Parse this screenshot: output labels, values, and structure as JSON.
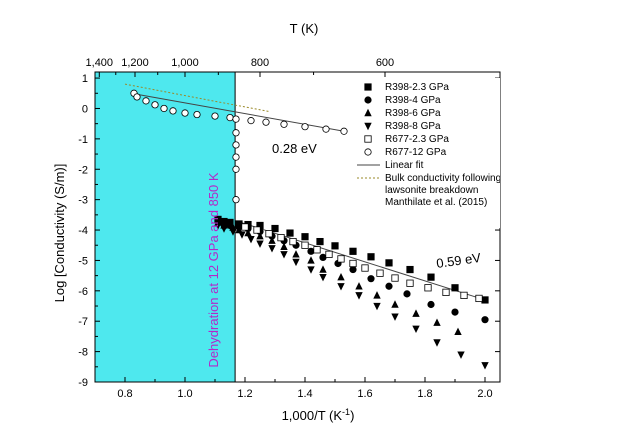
{
  "chart_data": {
    "type": "scatter",
    "xlabel": "1,000/T (K",
    "xlabel_sup": "-1",
    "xlabel_close": ")",
    "ylabel": "Log [Conductivity (S/m)]",
    "top_xlabel": "T (K)",
    "xlim": [
      0.7,
      2.05
    ],
    "ylim": [
      -9,
      1.2
    ],
    "x_ticks": [
      0.8,
      1.0,
      1.2,
      1.4,
      1.6,
      1.8,
      2.0
    ],
    "x_tick_labels": [
      "0.8",
      "1.0",
      "1.2",
      "1.4",
      "1.6",
      "1.8",
      "2.0"
    ],
    "y_ticks": [
      1,
      0,
      -1,
      -2,
      -3,
      -4,
      -5,
      -6,
      -7,
      -8,
      -9
    ],
    "y_tick_labels": [
      "1",
      "0",
      "-1",
      "-2",
      "-3",
      "-4",
      "-5",
      "-6",
      "-7",
      "-8",
      "-9"
    ],
    "top_ticks": [
      {
        "T": 1400,
        "label": "1,400"
      },
      {
        "T": 1200,
        "label": "1,200"
      },
      {
        "T": 1000,
        "label": "1,000"
      },
      {
        "T": 800,
        "label": "800"
      },
      {
        "T": 600,
        "label": "600"
      }
    ],
    "top_minor_ticks": [
      1300,
      1100,
      900,
      700
    ],
    "shaded_region": {
      "x": [
        0.7,
        1.167
      ],
      "color": "#4ee8ee"
    },
    "vertical_line_x": 1.167,
    "annotations": {
      "dehydration": "Dehydration at 12 GPa and 850 K",
      "ea_low": "0.28 eV",
      "ea_high": "0.59 eV"
    },
    "legend": [
      {
        "series": "R398-2.3",
        "label": "R398-2.3 GPa",
        "marker": "square-filled"
      },
      {
        "series": "R398-4",
        "label": "R398-4 GPa",
        "marker": "circle-filled"
      },
      {
        "series": "R398-6",
        "label": "R398-6 GPa",
        "marker": "triangle-up-filled"
      },
      {
        "series": "R398-8",
        "label": "R398-8 GPa",
        "marker": "triangle-down-filled"
      },
      {
        "series": "R677-2.3",
        "label": "R677-2.3 GPa",
        "marker": "square-open"
      },
      {
        "series": "R677-12",
        "label": "R677-12 GPa",
        "marker": "circle-open"
      },
      {
        "label": "Linear fit",
        "marker": "line-solid"
      },
      {
        "label_lines": [
          "Bulk conductivity following",
          "lawsonite breakdown",
          "Manthilate et al. (2015)"
        ],
        "marker": "line-dotted",
        "color": "#9a8a2a"
      }
    ],
    "series": [
      {
        "name": "R398-2.3",
        "marker": "square-filled",
        "x": [
          1.11,
          1.13,
          1.15,
          1.18,
          1.21,
          1.25,
          1.3,
          1.35,
          1.4,
          1.45,
          1.5,
          1.56,
          1.62,
          1.68,
          1.75,
          1.82,
          1.9,
          2.0
        ],
        "y": [
          -3.65,
          -3.72,
          -3.75,
          -3.8,
          -3.82,
          -3.85,
          -3.95,
          -4.1,
          -4.22,
          -4.38,
          -4.52,
          -4.7,
          -4.88,
          -5.08,
          -5.3,
          -5.55,
          -5.9,
          -6.3
        ]
      },
      {
        "name": "R398-4",
        "marker": "circle-filled",
        "x": [
          1.11,
          1.13,
          1.15,
          1.18,
          1.21,
          1.25,
          1.29,
          1.33,
          1.37,
          1.42,
          1.46,
          1.51,
          1.56,
          1.62,
          1.68,
          1.74,
          1.82,
          1.9,
          2.0
        ],
        "y": [
          -3.7,
          -3.8,
          -3.85,
          -3.9,
          -3.95,
          -4.05,
          -4.2,
          -4.35,
          -4.5,
          -4.7,
          -4.9,
          -5.1,
          -5.3,
          -5.6,
          -5.85,
          -6.1,
          -6.45,
          -6.7,
          -6.95
        ]
      },
      {
        "name": "R398-6",
        "marker": "triangle-up-filled",
        "x": [
          1.11,
          1.13,
          1.16,
          1.18,
          1.21,
          1.25,
          1.29,
          1.33,
          1.37,
          1.42,
          1.46,
          1.52,
          1.58,
          1.64,
          1.7,
          1.77,
          1.84,
          1.91
        ],
        "y": [
          -3.75,
          -3.85,
          -3.92,
          -4.0,
          -4.1,
          -4.2,
          -4.35,
          -4.55,
          -4.8,
          -5.0,
          -5.3,
          -5.55,
          -5.85,
          -6.15,
          -6.45,
          -6.75,
          -7.05,
          -7.35
        ]
      },
      {
        "name": "R398-8",
        "marker": "triangle-down-filled",
        "x": [
          1.11,
          1.13,
          1.16,
          1.19,
          1.22,
          1.25,
          1.29,
          1.33,
          1.37,
          1.42,
          1.46,
          1.52,
          1.58,
          1.64,
          1.7,
          1.77,
          1.84,
          1.92,
          2.0
        ],
        "y": [
          -3.85,
          -3.95,
          -4.05,
          -4.15,
          -4.3,
          -4.45,
          -4.6,
          -4.8,
          -5.05,
          -5.3,
          -5.55,
          -5.85,
          -6.15,
          -6.5,
          -6.85,
          -7.25,
          -7.7,
          -8.1,
          -8.45
        ]
      },
      {
        "name": "R677-2.3",
        "marker": "square-open",
        "x": [
          1.2,
          1.24,
          1.28,
          1.32,
          1.36,
          1.4,
          1.44,
          1.48,
          1.52,
          1.56,
          1.6,
          1.65,
          1.7,
          1.75,
          1.81,
          1.87,
          1.93,
          1.98
        ],
        "y": [
          -3.9,
          -4.0,
          -4.12,
          -4.25,
          -4.38,
          -4.5,
          -4.65,
          -4.8,
          -4.95,
          -5.1,
          -5.25,
          -5.42,
          -5.58,
          -5.75,
          -5.9,
          -6.05,
          -6.15,
          -6.25
        ]
      },
      {
        "name": "R677-12",
        "marker": "circle-open",
        "x": [
          0.83,
          0.84,
          0.87,
          0.9,
          0.93,
          0.96,
          1.0,
          1.04,
          1.1,
          1.15,
          1.17,
          1.17,
          1.17,
          1.17,
          1.17,
          1.17,
          1.22,
          1.27,
          1.33,
          1.4,
          1.47,
          1.53
        ],
        "y": [
          0.5,
          0.38,
          0.25,
          0.12,
          0.0,
          -0.08,
          -0.15,
          -0.2,
          -0.25,
          -0.3,
          -0.35,
          -0.8,
          -1.2,
          -1.6,
          -2.0,
          -3.0,
          -0.4,
          -0.45,
          -0.52,
          -0.6,
          -0.68,
          -0.75
        ]
      }
    ],
    "lines": [
      {
        "name": "Linear fit",
        "style": "solid",
        "segments": [
          {
            "x": [
              0.82,
              1.53
            ],
            "y": [
              0.5,
              -0.75
            ]
          },
          {
            "x": [
              1.17,
              2.0
            ],
            "y": [
              -3.7,
              -6.3
            ]
          }
        ]
      },
      {
        "name": "Bulk conductivity following lawsonite breakdown",
        "style": "dotted",
        "color": "#9a8a2a",
        "x": [
          0.8,
          1.28
        ],
        "y": [
          0.8,
          -0.1
        ]
      }
    ]
  }
}
